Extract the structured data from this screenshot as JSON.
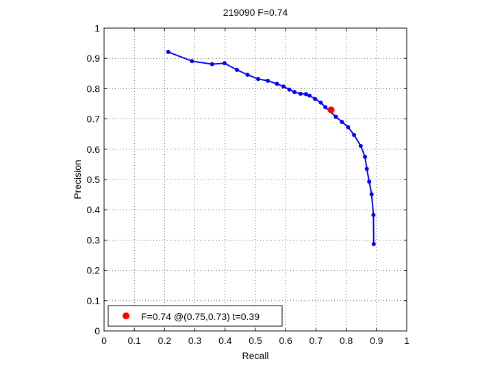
{
  "chart_data": {
    "type": "line",
    "title": "219090 F=0.74",
    "xlabel": "Recall",
    "ylabel": "Precision",
    "xlim": [
      0,
      1
    ],
    "ylim": [
      0,
      1
    ],
    "grid": true,
    "xticks": [
      0,
      0.1,
      0.2,
      0.3,
      0.4,
      0.5,
      0.6,
      0.7,
      0.8,
      0.9,
      1
    ],
    "yticks": [
      0,
      0.1,
      0.2,
      0.3,
      0.4,
      0.5,
      0.6,
      0.7,
      0.8,
      0.9,
      1
    ],
    "xtick_labels": [
      "0",
      "0.1",
      "0.2",
      "0.3",
      "0.4",
      "0.5",
      "0.6",
      "0.7",
      "0.8",
      "0.9",
      "1"
    ],
    "ytick_labels": [
      "0",
      "0.1",
      "0.2",
      "0.3",
      "0.4",
      "0.5",
      "0.6",
      "0.7",
      "0.8",
      "0.9",
      "1"
    ],
    "series": [
      {
        "color": "#0000ff",
        "marker": "dot",
        "x": [
          0.212,
          0.29,
          0.357,
          0.398,
          0.439,
          0.474,
          0.509,
          0.541,
          0.571,
          0.593,
          0.612,
          0.629,
          0.649,
          0.667,
          0.679,
          0.697,
          0.716,
          0.731,
          0.766,
          0.786,
          0.806,
          0.826,
          0.848,
          0.862,
          0.868,
          0.876,
          0.884,
          0.89,
          0.891
        ],
        "y": [
          0.921,
          0.891,
          0.881,
          0.884,
          0.862,
          0.846,
          0.832,
          0.826,
          0.816,
          0.807,
          0.797,
          0.789,
          0.783,
          0.782,
          0.777,
          0.766,
          0.754,
          0.739,
          0.707,
          0.69,
          0.673,
          0.647,
          0.611,
          0.575,
          0.535,
          0.493,
          0.451,
          0.383,
          0.287
        ]
      }
    ],
    "highlight": {
      "x": 0.75,
      "y": 0.73,
      "color": "#ff0000"
    },
    "legend": {
      "position": "bottom-left",
      "entries": [
        {
          "label": "F=0.74 @(0.75,0.73) t=0.39",
          "color": "#ff0000",
          "marker": "dot"
        }
      ]
    }
  }
}
